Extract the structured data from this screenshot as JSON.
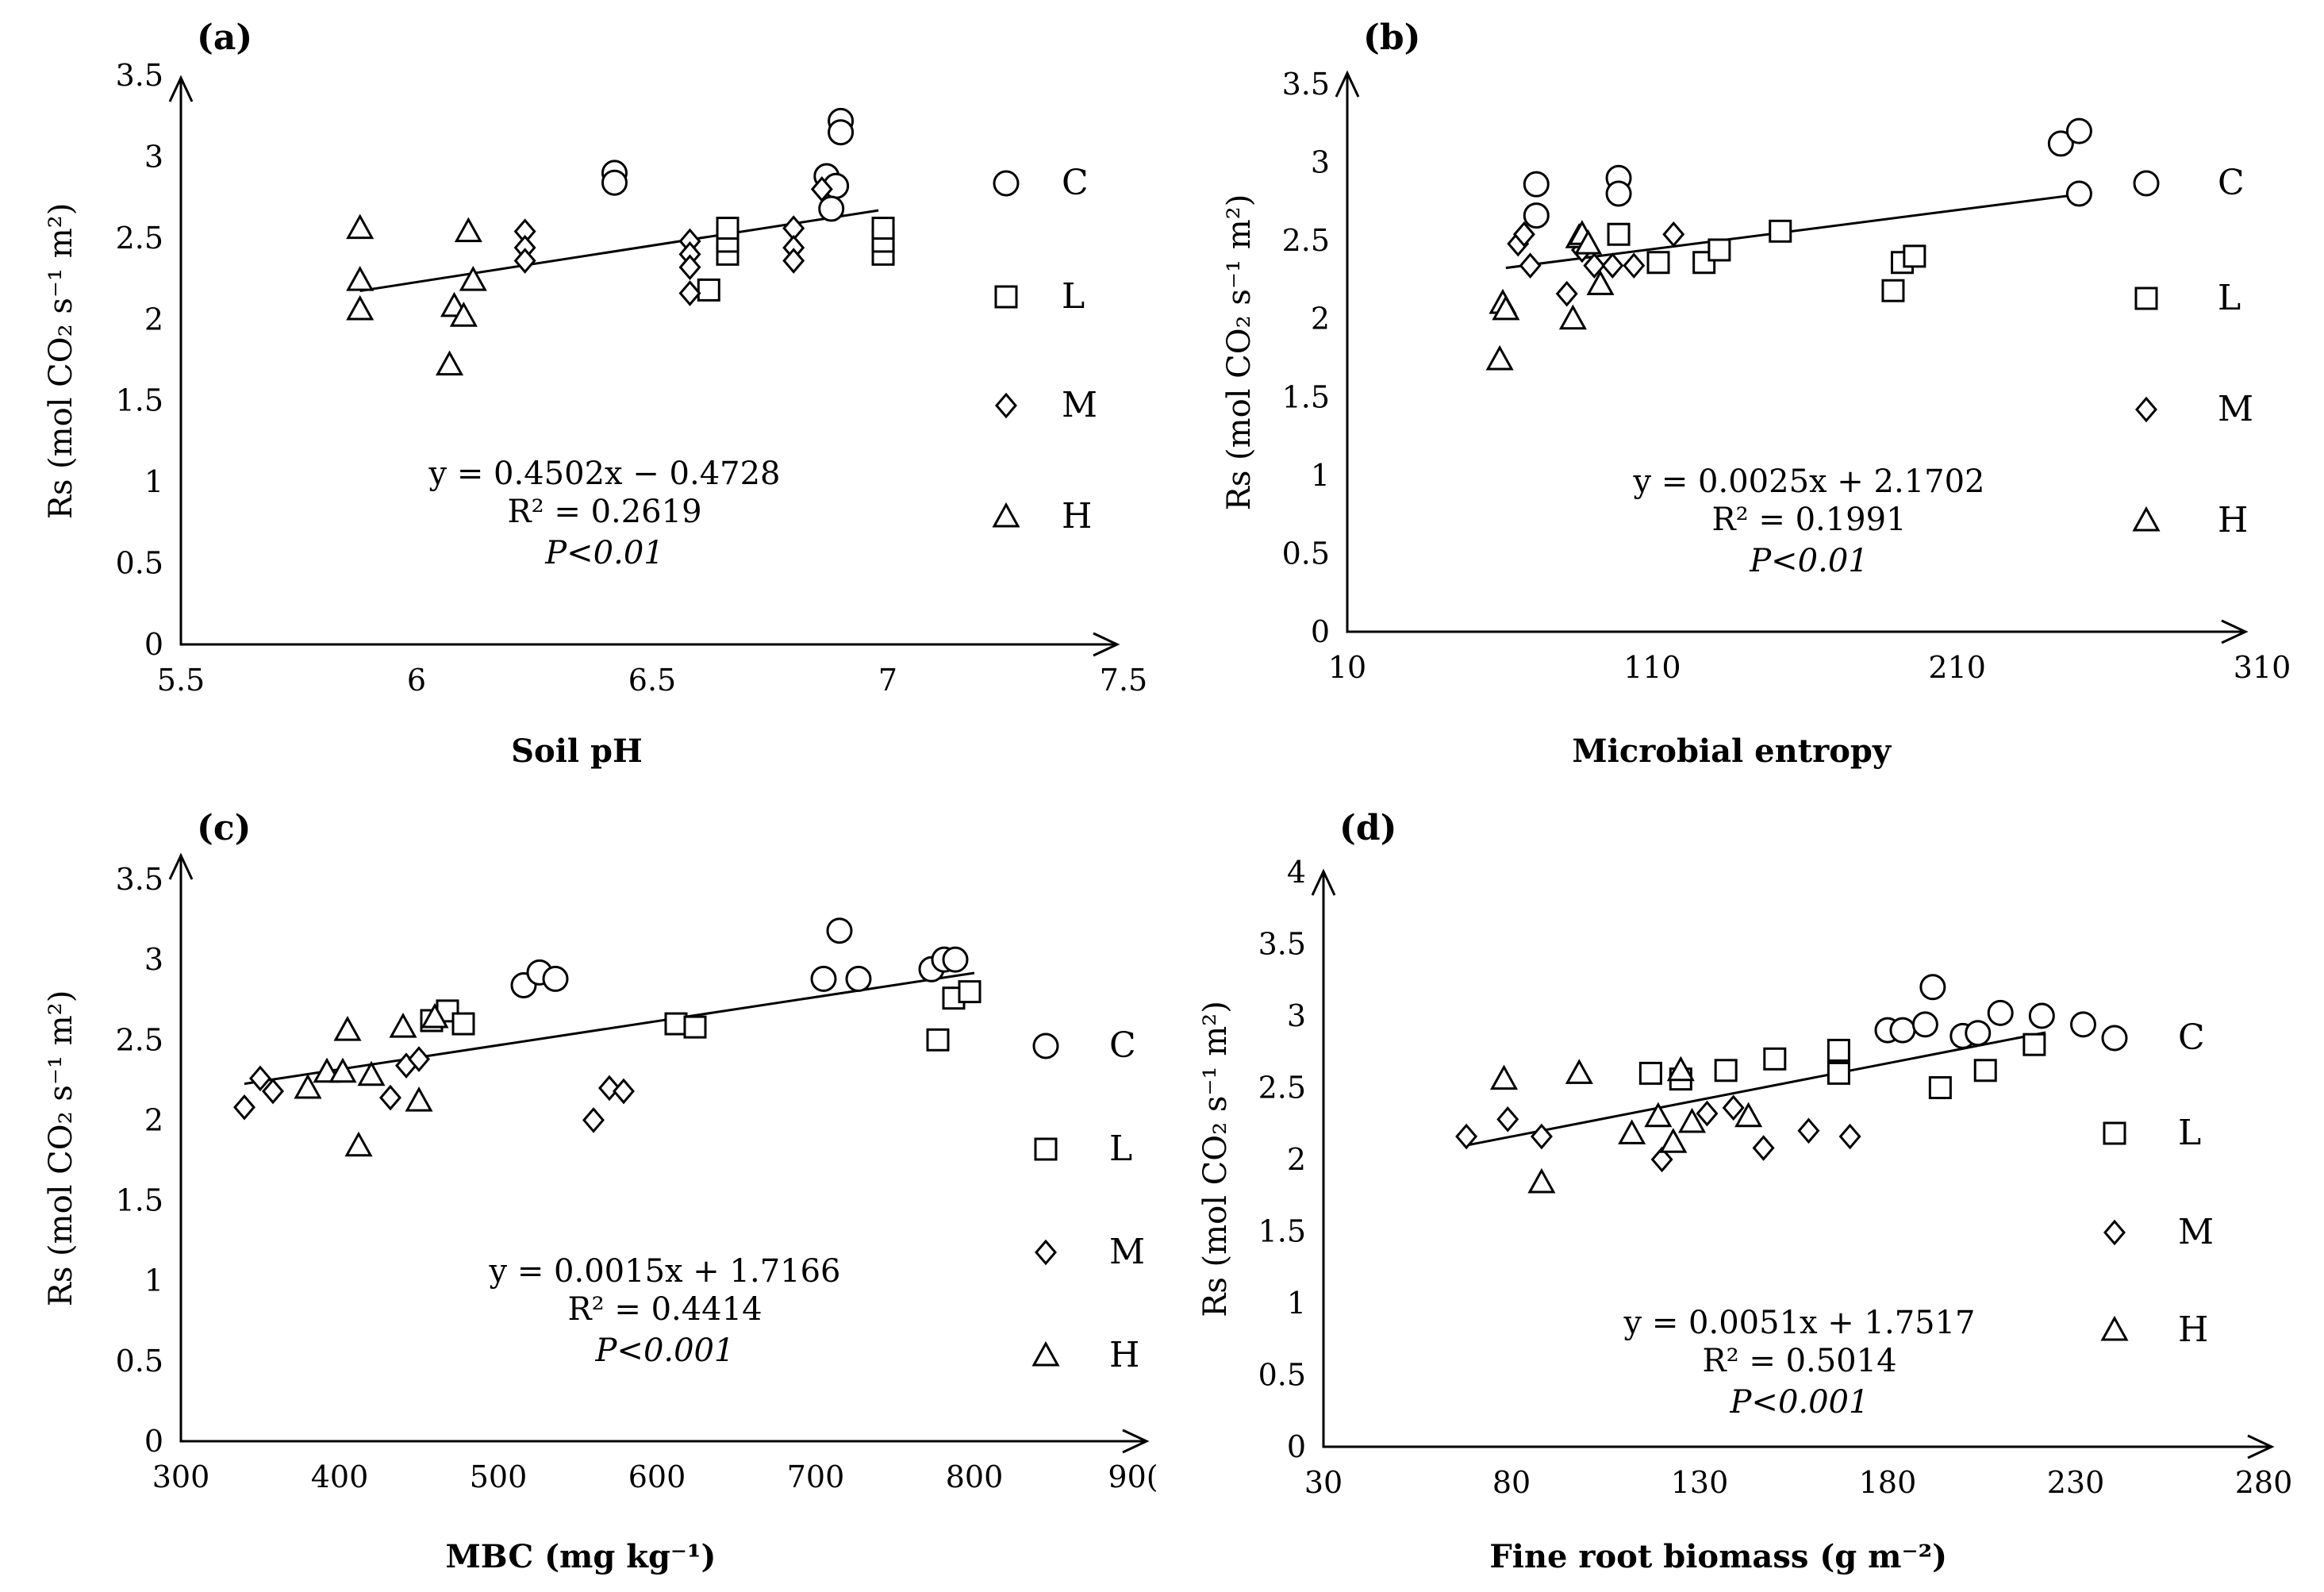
{
  "chart_data": [
    {
      "type": "scatter",
      "panel": "(a)",
      "ylabel": "Rs (mol CO₂ s⁻¹ m²)",
      "xlabel": "Soil pH",
      "xlim": [
        5.5,
        7.5
      ],
      "ylim": [
        0,
        3.5
      ],
      "xticks": [
        "5.5",
        "6",
        "6.5",
        "7",
        "7.5"
      ],
      "yticks": [
        "0",
        "0.5",
        "1",
        "1.5",
        "2",
        "2.5",
        "3",
        "3.5"
      ],
      "equation": "y = 0.4502x − 0.4728",
      "r2": "R² = 0.2619",
      "p": "P<0.01",
      "fit": {
        "slope": 0.4502,
        "intercept": -0.4728,
        "x_range": [
          5.88,
          6.98
        ]
      },
      "legend": [
        "C",
        "L",
        "M",
        "H"
      ],
      "series": [
        {
          "name": "C",
          "marker": "circle",
          "x": [
            6.42,
            6.42,
            6.87,
            6.89,
            6.9,
            6.9,
            6.88
          ],
          "y": [
            2.9,
            2.84,
            2.88,
            2.82,
            3.22,
            3.15,
            2.68
          ]
        },
        {
          "name": "L",
          "marker": "square",
          "x": [
            6.62,
            6.66,
            6.66,
            6.66,
            6.99,
            6.99,
            6.99
          ],
          "y": [
            2.18,
            2.4,
            2.48,
            2.56,
            2.4,
            2.48,
            2.56
          ]
        },
        {
          "name": "M",
          "marker": "diamond",
          "x": [
            6.23,
            6.23,
            6.23,
            6.58,
            6.58,
            6.58,
            6.58,
            6.8,
            6.8,
            6.8,
            6.86
          ],
          "y": [
            2.54,
            2.44,
            2.36,
            2.48,
            2.4,
            2.32,
            2.16,
            2.56,
            2.44,
            2.36,
            2.8
          ]
        },
        {
          "name": "H",
          "marker": "triangle",
          "x": [
            5.88,
            5.88,
            5.88,
            6.07,
            6.08,
            6.1,
            6.11,
            6.12
          ],
          "y": [
            2.56,
            2.24,
            2.06,
            1.72,
            2.08,
            2.02,
            2.54,
            2.24
          ]
        }
      ]
    },
    {
      "type": "scatter",
      "panel": "(b)",
      "ylabel": "Rs (mol CO₂ s⁻¹ m²)",
      "xlabel": "Microbial entropy",
      "xlim": [
        10,
        310
      ],
      "ylim": [
        0,
        3.5
      ],
      "xticks": [
        "10",
        "110",
        "210",
        "310"
      ],
      "yticks": [
        "0",
        "0.5",
        "1",
        "1.5",
        "2",
        "2.5",
        "3",
        "3.5"
      ],
      "equation": "y = 0.0025x + 2.1702",
      "r2": "R² = 0.1991",
      "p": "P<0.01",
      "fit": {
        "slope": 0.0025,
        "intercept": 2.1702,
        "x_range": [
          62,
          250
        ]
      },
      "legend": [
        "C",
        "L",
        "M",
        "H"
      ],
      "series": [
        {
          "name": "C",
          "marker": "circle",
          "x": [
            72,
            72,
            99,
            99,
            244,
            250,
            250
          ],
          "y": [
            2.86,
            2.66,
            2.9,
            2.8,
            3.12,
            3.2,
            2.8
          ]
        },
        {
          "name": "L",
          "marker": "square",
          "x": [
            99,
            112,
            127,
            132,
            152,
            189,
            192,
            196
          ],
          "y": [
            2.54,
            2.36,
            2.36,
            2.44,
            2.56,
            2.18,
            2.36,
            2.4
          ]
        },
        {
          "name": "M",
          "marker": "diamond",
          "x": [
            66,
            68,
            70,
            82,
            87,
            91,
            97,
            104,
            117
          ],
          "y": [
            2.48,
            2.54,
            2.34,
            2.16,
            2.44,
            2.34,
            2.34,
            2.34,
            2.54
          ]
        },
        {
          "name": "H",
          "marker": "triangle",
          "x": [
            60,
            61,
            62,
            84,
            86,
            87,
            89,
            93
          ],
          "y": [
            1.74,
            2.1,
            2.06,
            2.0,
            2.52,
            2.54,
            2.48,
            2.22
          ]
        }
      ]
    },
    {
      "type": "scatter",
      "panel": "(c)",
      "ylabel": "Rs (mol CO₂ s⁻¹ m²)",
      "xlabel": "MBC (mg kg⁻¹)",
      "xlim": [
        300,
        900
      ],
      "ylim": [
        0,
        3.5
      ],
      "xticks": [
        "300",
        "400",
        "500",
        "600",
        "700",
        "800",
        "90("
      ],
      "yticks": [
        "0",
        "0.5",
        "1",
        "1.5",
        "2",
        "2.5",
        "3",
        "3.5"
      ],
      "equation": "y = 0.0015x + 1.7166",
      "r2": "R² = 0.4414",
      "p": "P<0.001",
      "fit": {
        "slope": 0.0015,
        "intercept": 1.7166,
        "x_range": [
          340,
          800
        ]
      },
      "legend": [
        "C",
        "L",
        "M",
        "H"
      ],
      "series": [
        {
          "name": "C",
          "marker": "circle",
          "x": [
            516,
            526,
            536,
            705,
            715,
            727,
            773,
            781,
            788
          ],
          "y": [
            2.84,
            2.92,
            2.88,
            2.88,
            3.18,
            2.88,
            2.94,
            3.0,
            3.0
          ]
        },
        {
          "name": "L",
          "marker": "square",
          "x": [
            458,
            468,
            478,
            612,
            624,
            777,
            787,
            797
          ],
          "y": [
            2.62,
            2.68,
            2.6,
            2.6,
            2.58,
            2.5,
            2.76,
            2.8
          ]
        },
        {
          "name": "M",
          "marker": "diamond",
          "x": [
            340,
            350,
            358,
            432,
            442,
            450,
            560,
            570,
            579
          ],
          "y": [
            2.08,
            2.26,
            2.18,
            2.14,
            2.34,
            2.38,
            2.0,
            2.2,
            2.18
          ]
        },
        {
          "name": "H",
          "marker": "triangle",
          "x": [
            380,
            392,
            402,
            405,
            412,
            420,
            440,
            450,
            460
          ],
          "y": [
            2.2,
            2.3,
            2.3,
            2.56,
            1.84,
            2.28,
            2.58,
            2.12,
            2.64
          ]
        }
      ]
    },
    {
      "type": "scatter",
      "panel": "(d)",
      "ylabel": "Rs (mol CO₂ s⁻¹ m²)",
      "xlabel": "Fine root biomass (g m⁻²)",
      "xlim": [
        30,
        280
      ],
      "ylim": [
        0,
        4
      ],
      "xticks": [
        "30",
        "80",
        "130",
        "180",
        "230",
        "280"
      ],
      "yticks": [
        "0",
        "0.5",
        "1",
        "1.5",
        "2",
        "2.5",
        "3",
        "3.5",
        "4"
      ],
      "equation": "y = 0.0051x + 1.7517",
      "r2": "R² = 0.5014",
      "p": "P<0.001",
      "fit": {
        "slope": 0.0051,
        "intercept": 1.7517,
        "x_range": [
          68,
          222
        ]
      },
      "legend": [
        "C",
        "L",
        "M",
        "H"
      ],
      "series": [
        {
          "name": "C",
          "marker": "circle",
          "x": [
            180,
            184,
            190,
            192,
            200,
            204,
            210,
            221,
            232
          ],
          "y": [
            2.9,
            2.9,
            2.94,
            3.2,
            2.86,
            2.88,
            3.02,
            3.0,
            2.94
          ]
        },
        {
          "name": "L",
          "marker": "square",
          "x": [
            117,
            125,
            137,
            150,
            167,
            167,
            194,
            206,
            219
          ],
          "y": [
            2.6,
            2.56,
            2.62,
            2.7,
            2.76,
            2.6,
            2.5,
            2.62,
            2.8
          ]
        },
        {
          "name": "M",
          "marker": "diamond",
          "x": [
            68,
            79,
            88,
            120,
            132,
            139,
            147,
            159,
            170
          ],
          "y": [
            2.16,
            2.28,
            2.16,
            2.0,
            2.32,
            2.36,
            2.08,
            2.2,
            2.16
          ]
        },
        {
          "name": "H",
          "marker": "triangle",
          "x": [
            78,
            88,
            98,
            112,
            119,
            123,
            125,
            128,
            143
          ],
          "y": [
            2.56,
            1.84,
            2.6,
            2.18,
            2.3,
            2.12,
            2.62,
            2.26,
            2.3
          ]
        }
      ]
    }
  ]
}
